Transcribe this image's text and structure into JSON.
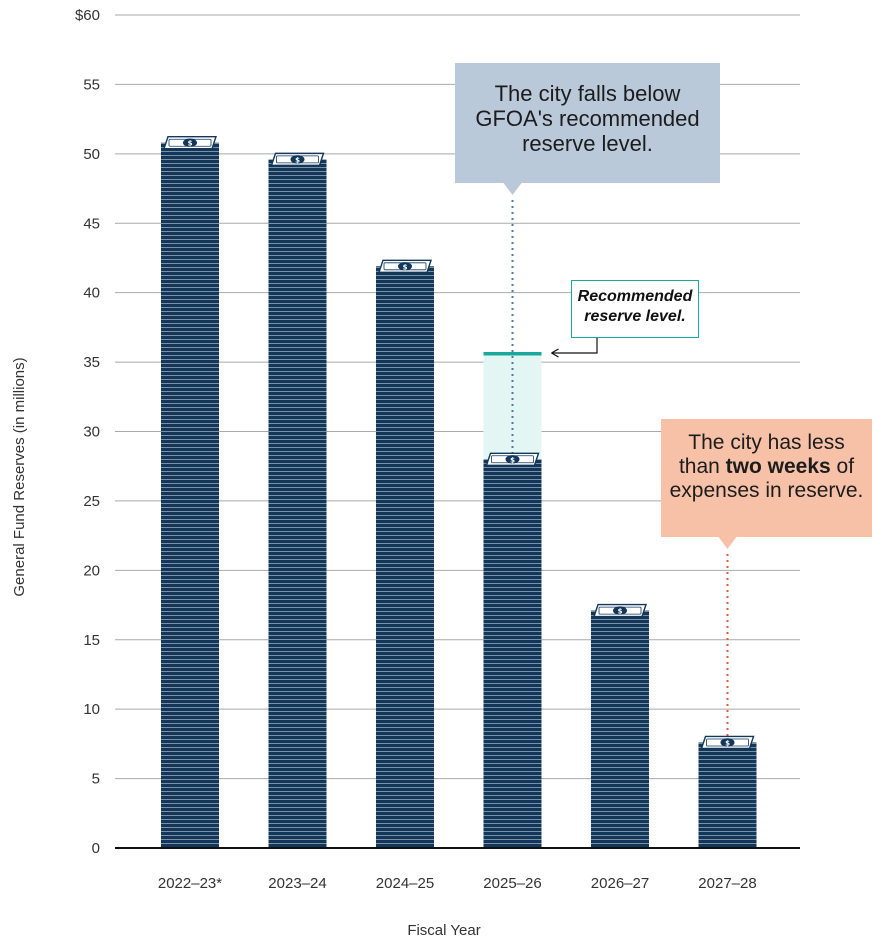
{
  "chart_data": {
    "type": "bar",
    "categories": [
      "2022–23*",
      "2023–24",
      "2024–25",
      "2025–26",
      "2026–27",
      "2027–28"
    ],
    "values": [
      50.8,
      49.6,
      41.9,
      28.0,
      17.1,
      7.6
    ],
    "ylim": [
      0,
      60
    ],
    "yticks": [
      "0",
      "5",
      "10",
      "15",
      "20",
      "25",
      "30",
      "35",
      "40",
      "45",
      "50",
      "55",
      "$60"
    ],
    "xlabel": "Fiscal Year",
    "ylabel": "General Fund Reserves (in millions)",
    "recommended_reserve_level": 35.6,
    "grid": true,
    "colors": {
      "bar": "#13375a",
      "bar_stripe": "#ffffff",
      "recommended_line": "#1ba89c",
      "recommended_fill": "#e3f6f4",
      "gfoa_callout": "#b9c9d9",
      "weeks_callout": "#f7c1a8",
      "weeks_leader": "#e05a3a",
      "gfoa_leader": "#4a78a8",
      "bill_icon": "#13375a"
    },
    "bar_icon": "dollar-bill-icon"
  },
  "annotations": {
    "gfoa": {
      "line1": "The city falls below",
      "line2": "GFOA's recommended",
      "line3": "reserve level."
    },
    "recommended": {
      "line1": "Recommended",
      "line2": "reserve level."
    },
    "two_weeks": {
      "line1": "The city has less",
      "line2_pre": "than ",
      "line2_bold": "two weeks",
      "line2_post": " of",
      "line3": "expenses in reserve."
    }
  }
}
